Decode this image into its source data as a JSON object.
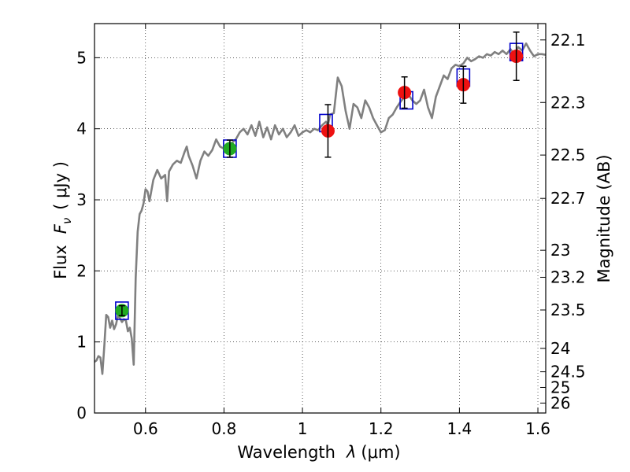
{
  "chart_data": {
    "type": "line",
    "xlabel_text": "Wavelength",
    "xlabel_sym": "λ",
    "xlabel_unit": "(μm)",
    "ylabel_text": "Flux",
    "ylabel_sym": "F",
    "ylabel_sub": "ν",
    "ylabel_unit": "( μJy )",
    "y2label": "Magnitude (AB)",
    "xlim": [
      0.47,
      1.62
    ],
    "ylim": [
      0,
      5.48
    ],
    "grid": true,
    "x_ticks": [
      0.6,
      0.8,
      1.0,
      1.2,
      1.4,
      1.6
    ],
    "x_tick_labels": [
      "0.6",
      "0.8",
      "1",
      "1.2",
      "1.4",
      "1.6"
    ],
    "y_ticks": [
      0,
      1,
      2,
      3,
      4,
      5
    ],
    "y_tick_labels": [
      "0",
      "1",
      "2",
      "3",
      "4",
      "5"
    ],
    "mag_ticks": [
      {
        "label": "22.1",
        "flux": 5.25
      },
      {
        "label": "22.3",
        "flux": 4.37
      },
      {
        "label": "22.5",
        "flux": 3.63
      },
      {
        "label": "22.7",
        "flux": 3.02
      },
      {
        "label": "23",
        "flux": 2.29
      },
      {
        "label": "23.2",
        "flux": 1.91
      },
      {
        "label": "23.5",
        "flux": 1.45
      },
      {
        "label": "24",
        "flux": 0.91
      },
      {
        "label": "24.5",
        "flux": 0.58
      },
      {
        "label": "25",
        "flux": 0.36
      },
      {
        "label": "26",
        "flux": 0.14
      }
    ],
    "colors": {
      "spectrum": "#808080",
      "model_box": "#0000cc",
      "phot_green": "#22aa22",
      "phot_red": "#ee1111",
      "errorbar": "#000000"
    },
    "spectrum": [
      [
        0.47,
        0.72
      ],
      [
        0.475,
        0.74
      ],
      [
        0.48,
        0.8
      ],
      [
        0.485,
        0.78
      ],
      [
        0.49,
        0.55
      ],
      [
        0.495,
        0.95
      ],
      [
        0.5,
        1.38
      ],
      [
        0.505,
        1.35
      ],
      [
        0.51,
        1.2
      ],
      [
        0.515,
        1.3
      ],
      [
        0.52,
        1.18
      ],
      [
        0.525,
        1.25
      ],
      [
        0.53,
        1.38
      ],
      [
        0.535,
        1.33
      ],
      [
        0.54,
        1.28
      ],
      [
        0.545,
        1.32
      ],
      [
        0.55,
        1.3
      ],
      [
        0.555,
        1.15
      ],
      [
        0.56,
        1.2
      ],
      [
        0.565,
        1.05
      ],
      [
        0.57,
        0.68
      ],
      [
        0.575,
        1.9
      ],
      [
        0.58,
        2.55
      ],
      [
        0.585,
        2.8
      ],
      [
        0.59,
        2.85
      ],
      [
        0.595,
        2.95
      ],
      [
        0.6,
        3.15
      ],
      [
        0.605,
        3.12
      ],
      [
        0.61,
        2.98
      ],
      [
        0.62,
        3.28
      ],
      [
        0.63,
        3.42
      ],
      [
        0.64,
        3.3
      ],
      [
        0.65,
        3.35
      ],
      [
        0.655,
        2.98
      ],
      [
        0.66,
        3.4
      ],
      [
        0.67,
        3.5
      ],
      [
        0.68,
        3.55
      ],
      [
        0.69,
        3.52
      ],
      [
        0.7,
        3.68
      ],
      [
        0.705,
        3.75
      ],
      [
        0.71,
        3.62
      ],
      [
        0.72,
        3.48
      ],
      [
        0.73,
        3.3
      ],
      [
        0.74,
        3.55
      ],
      [
        0.75,
        3.68
      ],
      [
        0.76,
        3.62
      ],
      [
        0.77,
        3.7
      ],
      [
        0.78,
        3.85
      ],
      [
        0.79,
        3.75
      ],
      [
        0.8,
        3.72
      ],
      [
        0.81,
        3.68
      ],
      [
        0.82,
        3.8
      ],
      [
        0.83,
        3.85
      ],
      [
        0.84,
        3.95
      ],
      [
        0.85,
        4.0
      ],
      [
        0.86,
        3.92
      ],
      [
        0.87,
        4.05
      ],
      [
        0.88,
        3.9
      ],
      [
        0.89,
        4.1
      ],
      [
        0.9,
        3.88
      ],
      [
        0.91,
        4.02
      ],
      [
        0.92,
        3.85
      ],
      [
        0.93,
        4.05
      ],
      [
        0.94,
        3.92
      ],
      [
        0.95,
        4.0
      ],
      [
        0.96,
        3.88
      ],
      [
        0.97,
        3.95
      ],
      [
        0.98,
        4.05
      ],
      [
        0.99,
        3.9
      ],
      [
        1.0,
        3.95
      ],
      [
        1.01,
        3.98
      ],
      [
        1.02,
        3.95
      ],
      [
        1.03,
        4.0
      ],
      [
        1.04,
        3.98
      ],
      [
        1.05,
        4.05
      ],
      [
        1.06,
        4.1
      ],
      [
        1.065,
        4.05
      ],
      [
        1.07,
        4.2
      ],
      [
        1.08,
        4.22
      ],
      [
        1.09,
        4.72
      ],
      [
        1.1,
        4.6
      ],
      [
        1.11,
        4.25
      ],
      [
        1.12,
        4.0
      ],
      [
        1.13,
        4.35
      ],
      [
        1.14,
        4.3
      ],
      [
        1.15,
        4.15
      ],
      [
        1.16,
        4.4
      ],
      [
        1.17,
        4.3
      ],
      [
        1.18,
        4.15
      ],
      [
        1.19,
        4.05
      ],
      [
        1.2,
        3.95
      ],
      [
        1.21,
        3.98
      ],
      [
        1.22,
        4.15
      ],
      [
        1.23,
        4.2
      ],
      [
        1.24,
        4.3
      ],
      [
        1.25,
        4.38
      ],
      [
        1.26,
        4.45
      ],
      [
        1.27,
        4.48
      ],
      [
        1.28,
        4.4
      ],
      [
        1.29,
        4.35
      ],
      [
        1.3,
        4.4
      ],
      [
        1.31,
        4.55
      ],
      [
        1.32,
        4.3
      ],
      [
        1.33,
        4.15
      ],
      [
        1.34,
        4.45
      ],
      [
        1.35,
        4.6
      ],
      [
        1.36,
        4.75
      ],
      [
        1.37,
        4.7
      ],
      [
        1.38,
        4.85
      ],
      [
        1.39,
        4.9
      ],
      [
        1.4,
        4.88
      ],
      [
        1.41,
        4.92
      ],
      [
        1.42,
        5.0
      ],
      [
        1.43,
        4.95
      ],
      [
        1.44,
        4.98
      ],
      [
        1.45,
        5.02
      ],
      [
        1.46,
        5.0
      ],
      [
        1.47,
        5.05
      ],
      [
        1.48,
        5.03
      ],
      [
        1.49,
        5.08
      ],
      [
        1.5,
        5.05
      ],
      [
        1.51,
        5.1
      ],
      [
        1.52,
        5.05
      ],
      [
        1.53,
        5.12
      ],
      [
        1.54,
        5.05
      ],
      [
        1.55,
        5.15
      ],
      [
        1.56,
        5.1
      ],
      [
        1.57,
        5.2
      ],
      [
        1.58,
        5.1
      ],
      [
        1.59,
        5.02
      ],
      [
        1.6,
        5.05
      ],
      [
        1.61,
        5.05
      ],
      [
        1.62,
        5.04
      ]
    ],
    "model_boxes": [
      {
        "x": 0.54,
        "y": 1.44
      },
      {
        "x": 0.815,
        "y": 3.72
      },
      {
        "x": 1.06,
        "y": 4.08
      },
      {
        "x": 1.265,
        "y": 4.4
      },
      {
        "x": 1.41,
        "y": 4.72
      },
      {
        "x": 1.545,
        "y": 5.08
      }
    ],
    "photometry": [
      {
        "x": 0.54,
        "y": 1.44,
        "err": 0.07,
        "color": "green"
      },
      {
        "x": 0.815,
        "y": 3.72,
        "err": 0.12,
        "color": "green"
      },
      {
        "x": 1.065,
        "y": 3.97,
        "err": 0.37,
        "color": "red"
      },
      {
        "x": 1.26,
        "y": 4.51,
        "err": 0.22,
        "color": "red"
      },
      {
        "x": 1.41,
        "y": 4.62,
        "err": 0.26,
        "color": "red"
      },
      {
        "x": 1.545,
        "y": 5.02,
        "err": 0.34,
        "color": "red"
      }
    ]
  }
}
